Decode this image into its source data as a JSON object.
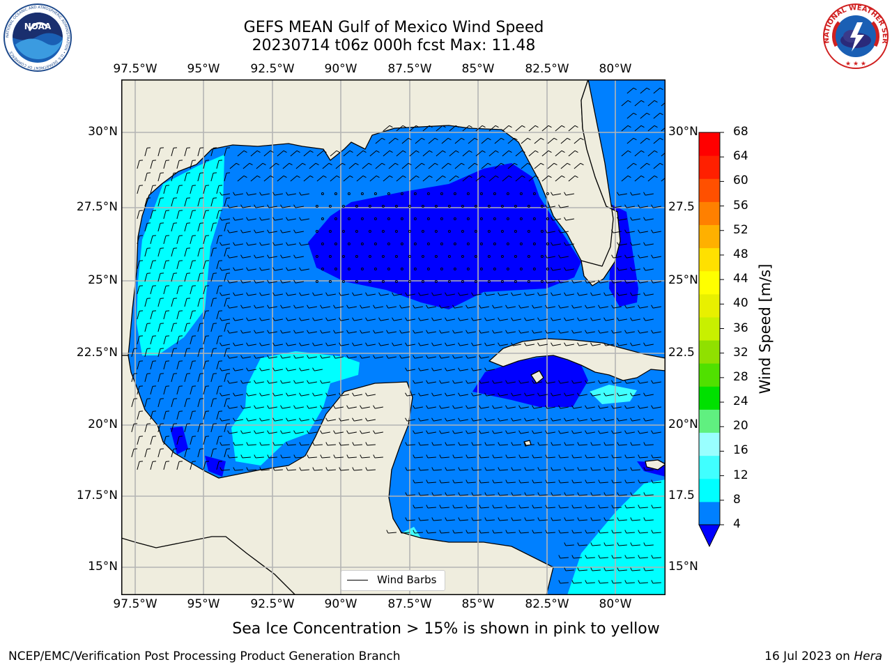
{
  "header": {
    "title_line1": "GEFS MEAN Gulf of Mexico Wind Speed",
    "title_line2": "20230714 t06z 000h fcst   Max: 11.48"
  },
  "logos": {
    "left": {
      "icon": "noaa-logo",
      "text_top": "NATIONAL OCEANIC AND ATMOSPHERIC ADMINISTRATION",
      "text_bottom": "U.S. DEPARTMENT OF COMMERCE",
      "center": "NOAA"
    },
    "right": {
      "icon": "nws-logo",
      "text": "NATIONAL WEATHER SERVICE"
    }
  },
  "map": {
    "region": "Gulf of Mexico",
    "lon_ticks": [
      "97.5°W",
      "95°W",
      "92.5°W",
      "90°W",
      "87.5°W",
      "85°W",
      "82.5°W",
      "80°W"
    ],
    "lat_ticks_left": [
      "30°N",
      "27.5°N",
      "25°N",
      "22.5°N",
      "20°N",
      "17.5°N",
      "15°N"
    ],
    "lat_ticks_right": [
      "30°N",
      "27.5",
      "25°N",
      "22.5",
      "20°N",
      "17.5",
      "15°N"
    ],
    "extent": {
      "lon_min": -98,
      "lon_max": -78,
      "lat_min": 14,
      "lat_max": 31.8
    },
    "colors": {
      "land": "#efedde",
      "grid": "#b4b4b4",
      "coast": "#000000"
    },
    "legend": {
      "label": "Wind Barbs"
    }
  },
  "colorbar": {
    "title": "Wind Speed [m/s]",
    "labels": [
      "68",
      "64",
      "60",
      "56",
      "52",
      "48",
      "44",
      "40",
      "36",
      "32",
      "28",
      "24",
      "20",
      "16",
      "12",
      "8",
      "4"
    ],
    "colors": [
      "#0000ff",
      "#0080ff",
      "#00ffff",
      "#40ffff",
      "#99ffff",
      "#60f080",
      "#00e000",
      "#50e000",
      "#90e000",
      "#c8f000",
      "#e8f000",
      "#ffff00",
      "#ffe000",
      "#ffb000",
      "#ff8000",
      "#ff5000",
      "#ff2000",
      "#ff0000"
    ]
  },
  "footer": {
    "note": "Sea Ice Concentration > 15% is shown in pink to yellow",
    "branch": "NCEP/EMC/Verification Post Processing Product Generation Branch",
    "date_text": "16 Jul 2023 on ",
    "host": "Hera"
  }
}
